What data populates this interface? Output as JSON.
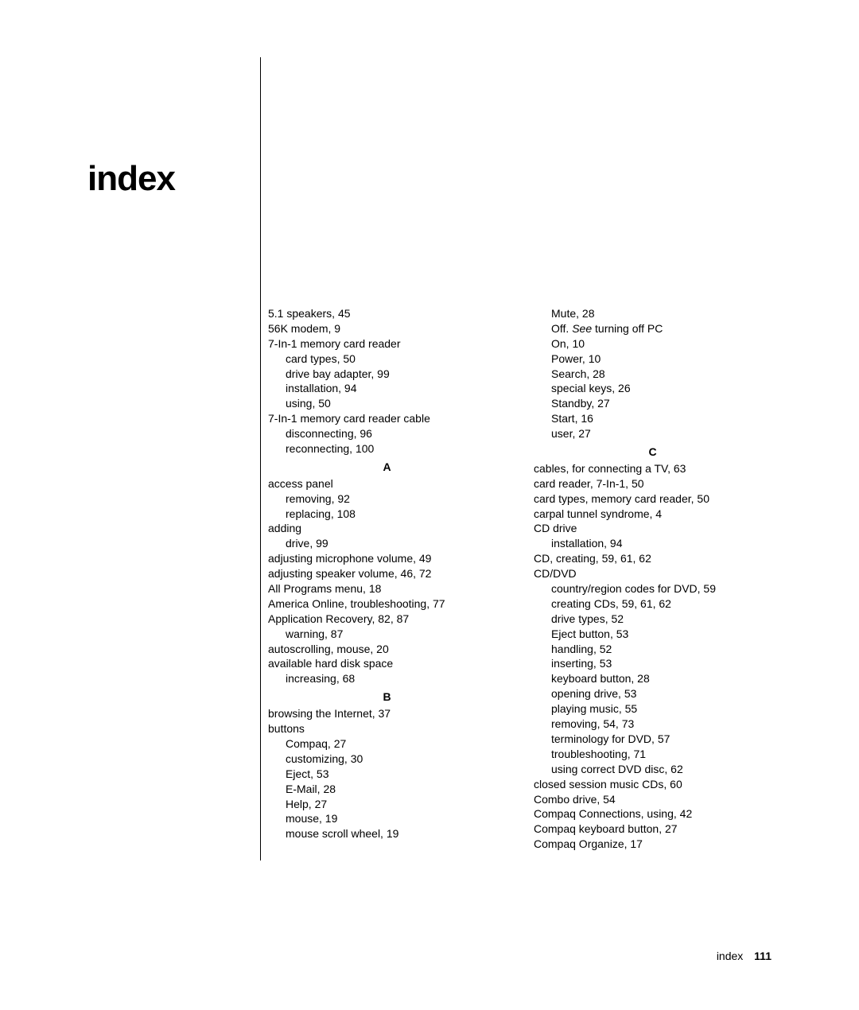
{
  "title": "index",
  "footer": {
    "label": "index",
    "page": "111"
  },
  "col1": {
    "pre": [
      {
        "t": "5.1 speakers, 45",
        "s": false
      },
      {
        "t": "56K modem, 9",
        "s": false
      },
      {
        "t": "7-In-1 memory card reader",
        "s": false
      },
      {
        "t": "card types, 50",
        "s": true
      },
      {
        "t": "drive bay adapter, 99",
        "s": true
      },
      {
        "t": "installation, 94",
        "s": true
      },
      {
        "t": "using, 50",
        "s": true
      },
      {
        "t": "7-In-1 memory card reader cable",
        "s": false
      },
      {
        "t": "disconnecting, 96",
        "s": true
      },
      {
        "t": "reconnecting, 100",
        "s": true
      }
    ],
    "letterA": "A",
    "secA": [
      {
        "t": "access panel",
        "s": false
      },
      {
        "t": "removing, 92",
        "s": true
      },
      {
        "t": "replacing, 108",
        "s": true
      },
      {
        "t": "adding",
        "s": false
      },
      {
        "t": "drive, 99",
        "s": true
      },
      {
        "t": "adjusting microphone volume, 49",
        "s": false
      },
      {
        "t": "adjusting speaker volume, 46, 72",
        "s": false
      },
      {
        "t": "All Programs menu, 18",
        "s": false
      },
      {
        "t": "America Online, troubleshooting, 77",
        "s": false
      },
      {
        "t": "Application Recovery, 82, 87",
        "s": false
      },
      {
        "t": "warning, 87",
        "s": true
      },
      {
        "t": "autoscrolling, mouse, 20",
        "s": false
      },
      {
        "t": "available hard disk space",
        "s": false
      },
      {
        "t": "increasing, 68",
        "s": true
      }
    ],
    "letterB": "B",
    "secB": [
      {
        "t": "browsing the Internet, 37",
        "s": false
      },
      {
        "t": "buttons",
        "s": false
      },
      {
        "t": "Compaq, 27",
        "s": true
      },
      {
        "t": "customizing, 30",
        "s": true
      },
      {
        "t": "Eject, 53",
        "s": true
      },
      {
        "t": "E-Mail, 28",
        "s": true
      },
      {
        "t": "Help, 27",
        "s": true
      },
      {
        "t": "mouse, 19",
        "s": true
      },
      {
        "t": "mouse scroll wheel, 19",
        "s": true
      }
    ]
  },
  "col2": {
    "pre": [
      {
        "t": "Mute, 28",
        "s": true
      },
      {
        "pre": "Off. ",
        "italic": "See",
        "post": " turning off PC",
        "s": true,
        "special": true
      },
      {
        "t": "On, 10",
        "s": true
      },
      {
        "t": "Power, 10",
        "s": true
      },
      {
        "t": "Search, 28",
        "s": true
      },
      {
        "t": "special keys, 26",
        "s": true
      },
      {
        "t": "Standby, 27",
        "s": true
      },
      {
        "t": "Start, 16",
        "s": true
      },
      {
        "t": "user, 27",
        "s": true
      }
    ],
    "letterC": "C",
    "secC": [
      {
        "t": "cables, for connecting a TV, 63",
        "s": false
      },
      {
        "t": "card reader, 7-In-1, 50",
        "s": false
      },
      {
        "t": "card types, memory card reader, 50",
        "s": false
      },
      {
        "t": "carpal tunnel syndrome, 4",
        "s": false
      },
      {
        "t": "CD drive",
        "s": false
      },
      {
        "t": "installation, 94",
        "s": true
      },
      {
        "t": "CD, creating, 59, 61, 62",
        "s": false
      },
      {
        "t": "CD/DVD",
        "s": false
      },
      {
        "t": "country/region codes for DVD, 59",
        "s": true
      },
      {
        "t": "creating CDs, 59, 61, 62",
        "s": true
      },
      {
        "t": "drive types, 52",
        "s": true
      },
      {
        "t": "Eject button, 53",
        "s": true
      },
      {
        "t": "handling, 52",
        "s": true
      },
      {
        "t": "inserting, 53",
        "s": true
      },
      {
        "t": "keyboard button, 28",
        "s": true
      },
      {
        "t": "opening drive, 53",
        "s": true
      },
      {
        "t": "playing music, 55",
        "s": true
      },
      {
        "t": "removing, 54, 73",
        "s": true
      },
      {
        "t": "terminology for DVD, 57",
        "s": true
      },
      {
        "t": "troubleshooting, 71",
        "s": true
      },
      {
        "t": "using correct DVD disc, 62",
        "s": true
      },
      {
        "t": "closed session music CDs, 60",
        "s": false
      },
      {
        "t": "Combo drive, 54",
        "s": false
      },
      {
        "t": "Compaq Connections, using, 42",
        "s": false
      },
      {
        "t": "Compaq keyboard button, 27",
        "s": false
      },
      {
        "t": "Compaq Organize, 17",
        "s": false
      }
    ]
  }
}
